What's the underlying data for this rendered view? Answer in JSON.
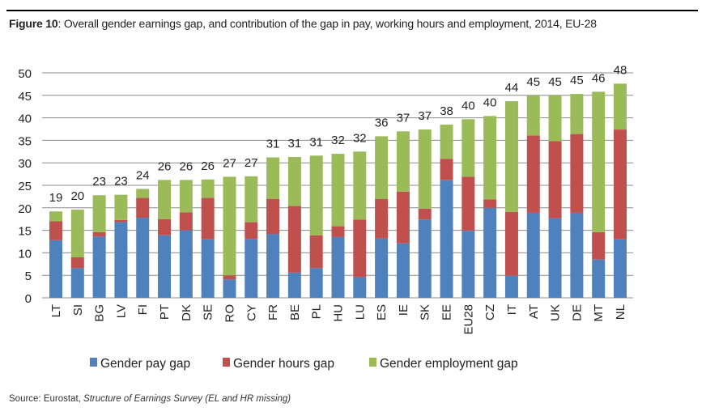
{
  "figure": {
    "label": "Figure 10",
    "title": ": Overall gender earnings gap, and contribution of the gap in pay, working hours and employment, 2014, EU-28"
  },
  "source": {
    "label": "Source: Eurostat, ",
    "text": "Structure of Earnings Survey (EL and HR missing)"
  },
  "chart_data": {
    "type": "bar",
    "stacked": true,
    "ylim": [
      0,
      50
    ],
    "yticks": [
      0,
      5,
      10,
      15,
      20,
      25,
      30,
      35,
      40,
      45,
      50
    ],
    "grid": true,
    "legend_position": "bottom",
    "categories": [
      "LT",
      "SI",
      "BG",
      "LV",
      "FI",
      "PT",
      "DK",
      "SE",
      "RO",
      "CY",
      "FR",
      "BE",
      "PL",
      "HU",
      "LU",
      "ES",
      "IE",
      "SK",
      "EE",
      "EU28",
      "CZ",
      "IT",
      "AT",
      "UK",
      "DE",
      "MT",
      "NL"
    ],
    "totals_labels": [
      "19",
      "20",
      "23",
      "23",
      "24",
      "26",
      "26",
      "26",
      "27",
      "27",
      "31",
      "31",
      "31",
      "32",
      "32",
      "36",
      "37",
      "37",
      "38",
      "40",
      "40",
      "44",
      "45",
      "45",
      "45",
      "46",
      "48"
    ],
    "series": [
      {
        "name": "Gender pay gap",
        "color": "#4f81bd",
        "values": [
          12.8,
          6.6,
          13.6,
          16.8,
          17.8,
          13.9,
          15.0,
          13.0,
          4.1,
          13.1,
          14.2,
          5.6,
          6.6,
          13.5,
          4.6,
          13.2,
          12.1,
          17.4,
          26.2,
          14.9,
          20.0,
          4.9,
          18.9,
          17.7,
          18.9,
          8.5,
          13.0
        ]
      },
      {
        "name": "Gender hours gap",
        "color": "#c0504d",
        "values": [
          4.2,
          2.4,
          1.0,
          0.5,
          4.4,
          3.6,
          4.0,
          9.2,
          0.9,
          3.7,
          7.8,
          14.8,
          7.3,
          2.4,
          12.8,
          8.8,
          11.5,
          2.4,
          4.7,
          12.0,
          1.9,
          14.2,
          17.2,
          17.1,
          17.5,
          6.1,
          24.4
        ]
      },
      {
        "name": "Gender employment gap",
        "color": "#9bbb59",
        "values": [
          2.2,
          10.6,
          8.2,
          5.6,
          2.0,
          8.7,
          7.2,
          4.1,
          21.9,
          10.2,
          9.2,
          10.9,
          17.7,
          16.1,
          15.1,
          13.9,
          13.4,
          17.6,
          7.6,
          12.8,
          18.5,
          24.6,
          8.9,
          10.2,
          8.9,
          31.2,
          10.2
        ]
      }
    ]
  }
}
